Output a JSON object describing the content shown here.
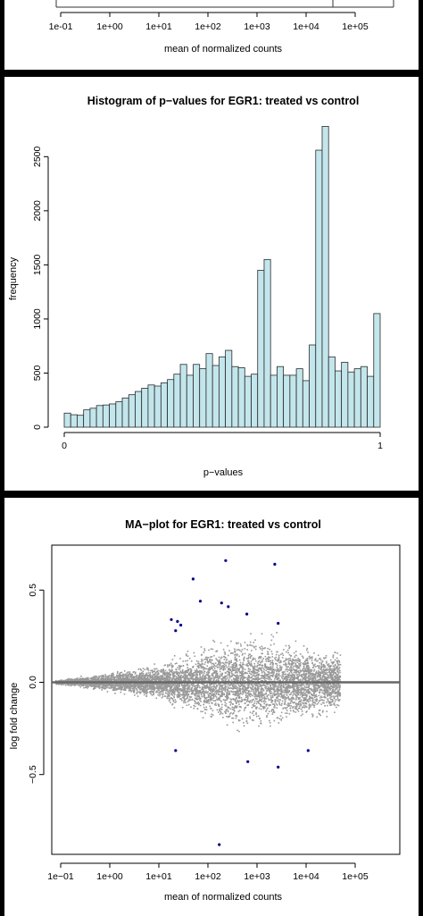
{
  "top_axis": {
    "ticks": [
      "1e-01",
      "1e+00",
      "1e+01",
      "1e+02",
      "1e+03",
      "1e+04",
      "1e+05"
    ],
    "xlabel": "mean of normalized counts"
  },
  "chart_data": [
    {
      "type": "bar",
      "title": "Histogram of p−values for EGR1: treated vs control",
      "xlabel": "p−values",
      "ylabel": "frequency",
      "xlim": [
        0,
        1
      ],
      "ylim": [
        0,
        2800
      ],
      "x_ticks": [
        "0",
        "1"
      ],
      "y_ticks": [
        "0",
        "500",
        "1000",
        "1500",
        "2000",
        "2500"
      ],
      "bin_width": 0.02,
      "values": [
        130,
        115,
        110,
        160,
        175,
        200,
        205,
        215,
        235,
        270,
        300,
        330,
        360,
        390,
        380,
        410,
        440,
        490,
        580,
        480,
        580,
        540,
        680,
        570,
        650,
        710,
        560,
        550,
        470,
        490,
        1450,
        1550,
        480,
        560,
        480,
        480,
        540,
        430,
        760,
        2560,
        2780,
        650,
        520,
        600,
        510,
        540,
        560,
        470,
        1050
      ],
      "colors": {
        "bar_fill": "#c3e6ec",
        "bar_stroke": "#2b2b2b"
      }
    },
    {
      "type": "scatter",
      "title": "MA−plot for EGR1: treated vs control",
      "xlabel": "mean of normalized counts",
      "ylabel": "log fold change",
      "x_scale": "log10",
      "xlim": [
        0.06,
        600000
      ],
      "ylim": [
        -0.88,
        0.7
      ],
      "x_ticks": [
        "1e−01",
        "1e+00",
        "1e+01",
        "1e+02",
        "1e+03",
        "1e+04",
        "1e+05"
      ],
      "y_ticks": [
        "−0.5",
        "0.0",
        "0.5"
      ],
      "series": [
        {
          "color": "#999999",
          "note": "non-significant genes, dense cloud around 0"
        },
        {
          "color": "#00008b",
          "points": [
            [
              50,
              0.56
            ],
            [
              230,
              0.66
            ],
            [
              2300,
              0.64
            ],
            [
              70,
              0.44
            ],
            [
              190,
              0.43
            ],
            [
              260,
              0.41
            ],
            [
              620,
              0.37
            ],
            [
              18,
              0.34
            ],
            [
              24,
              0.33
            ],
            [
              28,
              0.31
            ],
            [
              2700,
              0.32
            ],
            [
              22,
              0.28
            ],
            [
              22,
              -0.37
            ],
            [
              650,
              -0.43
            ],
            [
              2700,
              -0.46
            ],
            [
              11000,
              -0.37
            ],
            [
              170,
              -0.88
            ]
          ]
        }
      ],
      "reference_line": {
        "y": 0,
        "color": "#666666"
      }
    }
  ]
}
